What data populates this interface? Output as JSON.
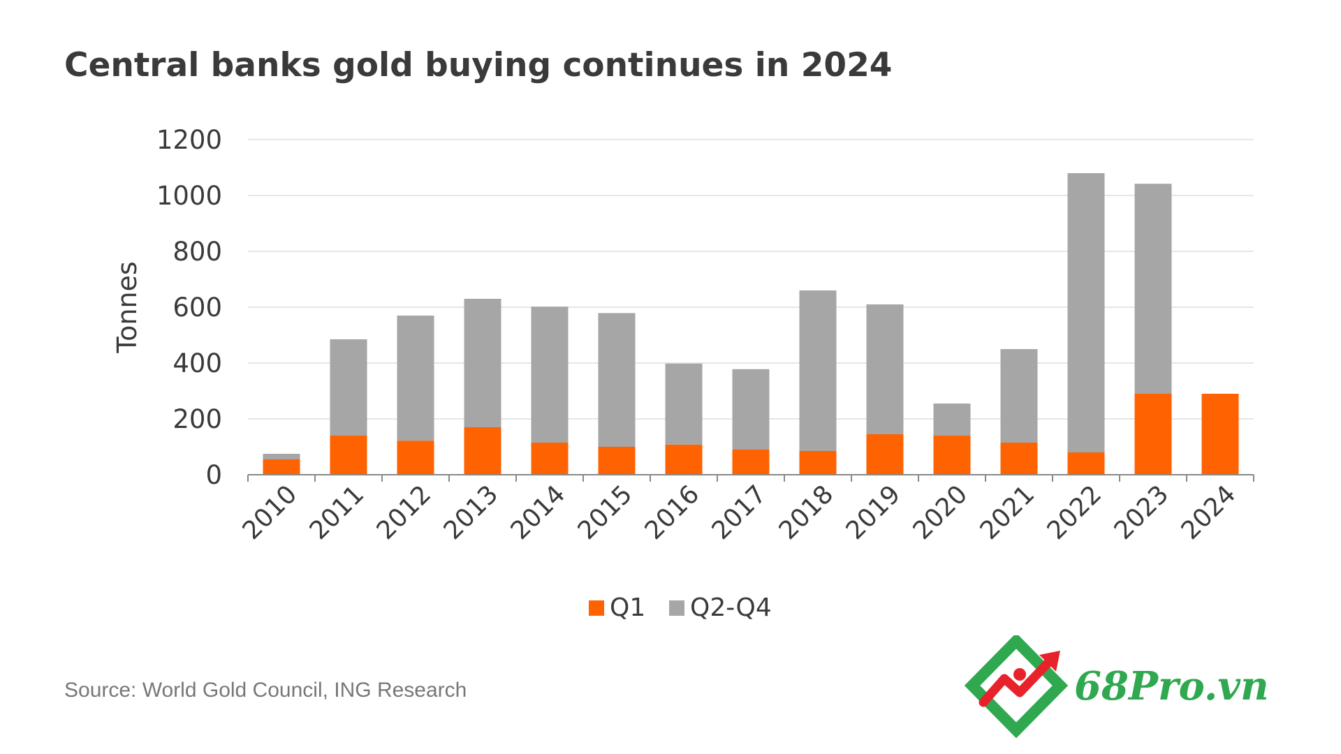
{
  "title": "Central banks gold buying continues in 2024",
  "source": "Source: World Gold Council, ING Research",
  "brand": {
    "text": "68Pro.vn"
  },
  "colors": {
    "q1": "#ff6200",
    "q2q4": "#a6a6a6",
    "grid": "#dddddd",
    "axis": "#888888",
    "text": "#3a3a3a",
    "brand_green": "#2fa84f",
    "brand_red": "#e8222b"
  },
  "chart_data": {
    "type": "bar",
    "stacked": true,
    "categories": [
      "2010",
      "2011",
      "2012",
      "2013",
      "2014",
      "2015",
      "2016",
      "2017",
      "2018",
      "2019",
      "2020",
      "2021",
      "2022",
      "2023",
      "2024"
    ],
    "series": [
      {
        "name": "Q1",
        "values": [
          55,
          140,
          122,
          170,
          115,
          100,
          108,
          90,
          85,
          145,
          140,
          115,
          80,
          290,
          290
        ]
      },
      {
        "name": "Q2-Q4",
        "values": [
          20,
          345,
          448,
          460,
          487,
          479,
          290,
          288,
          575,
          465,
          115,
          335,
          1000,
          752,
          0
        ]
      }
    ],
    "xlabel": "",
    "ylabel": "Tonnes",
    "ylim": [
      0,
      1200
    ],
    "yticks": [
      "0",
      "200",
      "400",
      "600",
      "800",
      "1000",
      "1200"
    ],
    "grid": true,
    "legend": "bottom-center"
  }
}
